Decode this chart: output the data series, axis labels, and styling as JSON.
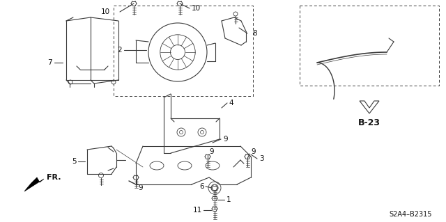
{
  "bg_color": "#ffffff",
  "line_color": "#3a3a3a",
  "label_color": "#111111",
  "title_code": "S2A4–B2315",
  "fr_label": "FR.",
  "ref_label": "B-23",
  "figsize": [
    6.4,
    3.19
  ],
  "dpi": 100
}
